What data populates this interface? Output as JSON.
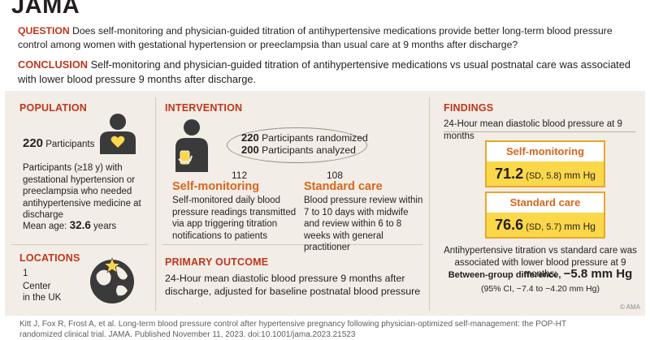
{
  "brand": "JAMA",
  "question": {
    "tag": "QUESTION",
    "text": "Does self-monitoring and physician-guided titration of antihypertensive medications provide better long-term blood pressure control among women with gestational hypertension or preeclampsia than usual care at 9 months after discharge?"
  },
  "conclusion": {
    "tag": "CONCLUSION",
    "text": "Self-monitoring and physician-guided titration of antihypertensive medications vs usual postnatal care was associated with lower blood pressure 9 months after discharge."
  },
  "population": {
    "title": "POPULATION",
    "count": "220",
    "count_label": "Participants",
    "desc": "Participants (≥18 y) with gestational hypertension or preeclampsia who needed antihypertensive medicine at discharge",
    "age_label": "Mean age:",
    "age_value": "32.6",
    "age_unit": "years"
  },
  "locations": {
    "title": "LOCATIONS",
    "count": "1",
    "line1": "Center",
    "line2": "in the UK"
  },
  "intervention": {
    "title": "INTERVENTION",
    "randomized_n": "220",
    "randomized_label": "Participants randomized",
    "analyzed_n": "200",
    "analyzed_label": "Participants analyzed",
    "arm1": {
      "n": "112",
      "name": "Self-monitoring",
      "desc": "Self-monitored daily blood pressure readings transmitted via app triggering titration notifications to patients"
    },
    "arm2": {
      "n": "108",
      "name": "Standard care",
      "desc": "Blood pressure review within 7 to 10 days with midwife and review within 6 to 8 weeks with general practitioner"
    }
  },
  "primary_outcome": {
    "title": "PRIMARY OUTCOME",
    "text": "24-Hour mean diastolic blood pressure 9 months after discharge, adjusted for baseline postnatal blood pressure"
  },
  "findings": {
    "title": "FINDINGS",
    "subtitle": "24-Hour mean diastolic blood pressure at 9 months",
    "self": {
      "label": "Self-monitoring",
      "value": "71.2",
      "sd": "(SD, 5.8)",
      "unit": "mm Hg"
    },
    "standard": {
      "label": "Standard care",
      "value": "76.6",
      "sd": "(SD, 5.7)",
      "unit": "mm Hg"
    },
    "summary": "Antihypertensive titration vs standard care was associated with lower blood pressure at 9 months:",
    "diff_label": "Between-group difference,",
    "diff_value": "−5.8 mm Hg",
    "ci": "(95% CI, −7.4 to −4.20 mm Hg)"
  },
  "copyright": "© AMA",
  "citation": "Kitt J, Fox R, Frost A, et al. Long-term blood pressure control after hypertensive pregnancy following physician-optimized self-management: the POP-HT randomized clinical trial. JAMA. Published November 11, 2023. doi:10.1001/jama.2023.21523",
  "colors": {
    "accent": "#c0361c",
    "orange": "#d9651c",
    "panel": "#f2ede6",
    "highlight": "#fbd74a"
  },
  "icons": [
    "person-heart-icon",
    "globe-star-icon",
    "person-phone-icon"
  ]
}
